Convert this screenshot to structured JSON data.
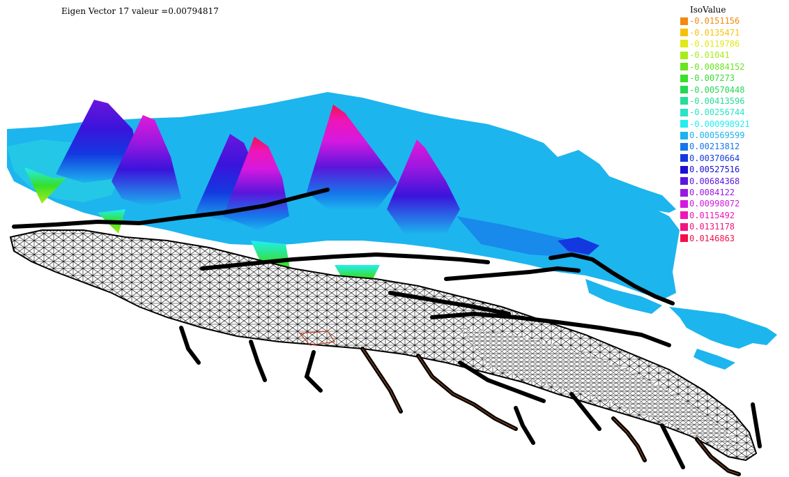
{
  "title": "Eigen Vector 17 valeur =0.00794817",
  "legend": {
    "title": "IsoValue",
    "items": [
      {
        "label": "-0.0151156",
        "color": "#f28a10"
      },
      {
        "label": "-0.0135471",
        "color": "#f5c20a"
      },
      {
        "label": "-0.0119786",
        "color": "#e0ea12"
      },
      {
        "label": "-0.01041",
        "color": "#a7ec19"
      },
      {
        "label": "-0.00884152",
        "color": "#69e41f"
      },
      {
        "label": "-0.007273",
        "color": "#36df2a"
      },
      {
        "label": "-0.00570448",
        "color": "#23d855"
      },
      {
        "label": "-0.00413596",
        "color": "#26dd9a"
      },
      {
        "label": "-0.00256744",
        "color": "#27e4c6"
      },
      {
        "label": "-0.000998921",
        "color": "#22eef0"
      },
      {
        "label": "0.000569599",
        "color": "#1db2ee"
      },
      {
        "label": "0.00213812",
        "color": "#1677ea"
      },
      {
        "label": "0.00370664",
        "color": "#1438e0"
      },
      {
        "label": "0.00527516",
        "color": "#1c0fd4"
      },
      {
        "label": "0.00684368",
        "color": "#5a16dc"
      },
      {
        "label": "0.0084122",
        "color": "#9a18e0"
      },
      {
        "label": "0.00998072",
        "color": "#d419e0"
      },
      {
        "label": "0.0115492",
        "color": "#ef16b6"
      },
      {
        "label": "0.0131178",
        "color": "#f2137e"
      },
      {
        "label": "0.0146863",
        "color": "#f3104a"
      }
    ]
  }
}
